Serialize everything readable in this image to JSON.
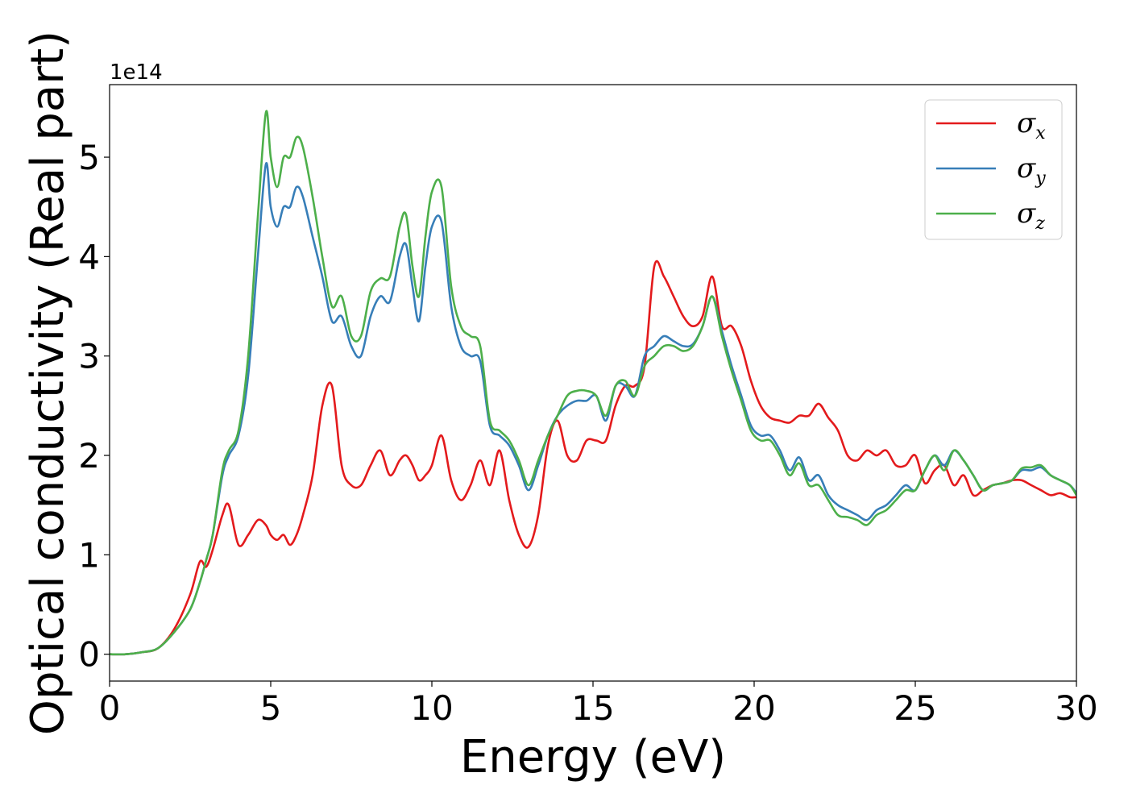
{
  "chart_data": {
    "type": "line",
    "xlabel": "Energy (eV)",
    "ylabel": "Optical conductivity (Real part)",
    "offset_text": "1e14",
    "xlim": [
      0,
      30
    ],
    "ylim": [
      -0.27,
      5.73
    ],
    "xticks": [
      0,
      5,
      10,
      15,
      20,
      25,
      30
    ],
    "xtick_labels": [
      "0",
      "5",
      "10",
      "15",
      "20",
      "25",
      "30"
    ],
    "yticks": [
      0,
      1,
      2,
      3,
      4,
      5
    ],
    "ytick_labels": [
      "0",
      "1",
      "2",
      "3",
      "4",
      "5"
    ],
    "grid": false,
    "legend": {
      "position": "top-right"
    },
    "x": [
      0,
      0.5,
      1,
      1.5,
      2,
      2.5,
      2.8,
      3,
      3.2,
      3.5,
      3.7,
      4,
      4.3,
      4.6,
      4.85,
      5,
      5.2,
      5.4,
      5.6,
      5.8,
      6,
      6.3,
      6.6,
      6.9,
      7.2,
      7.5,
      7.8,
      8.1,
      8.4,
      8.7,
      9,
      9.2,
      9.4,
      9.6,
      9.8,
      10,
      10.3,
      10.6,
      10.9,
      11.2,
      11.5,
      11.8,
      12.1,
      12.4,
      12.7,
      13,
      13.3,
      13.6,
      13.9,
      14.2,
      14.5,
      14.8,
      15.1,
      15.4,
      15.7,
      16,
      16.3,
      16.6,
      16.9,
      17.2,
      17.5,
      17.8,
      18.1,
      18.4,
      18.7,
      19,
      19.3,
      19.6,
      19.9,
      20.2,
      20.5,
      20.8,
      21.1,
      21.4,
      21.7,
      22,
      22.3,
      22.6,
      22.9,
      23.2,
      23.5,
      23.8,
      24.1,
      24.4,
      24.7,
      25,
      25.3,
      25.6,
      25.9,
      26.2,
      26.5,
      26.8,
      27.1,
      27.4,
      27.7,
      28,
      28.3,
      28.6,
      28.9,
      29.2,
      29.5,
      29.8,
      30
    ],
    "series": [
      {
        "name": "σ",
        "subscript": "x",
        "color": "#e31a1c",
        "values": [
          0,
          0,
          0.02,
          0.06,
          0.25,
          0.6,
          0.93,
          0.88,
          1.05,
          1.4,
          1.5,
          1.1,
          1.2,
          1.35,
          1.3,
          1.2,
          1.15,
          1.2,
          1.1,
          1.2,
          1.4,
          1.8,
          2.5,
          2.7,
          1.9,
          1.7,
          1.7,
          1.9,
          2.05,
          1.8,
          1.95,
          2.0,
          1.9,
          1.75,
          1.8,
          1.9,
          2.2,
          1.75,
          1.55,
          1.7,
          1.95,
          1.7,
          2.05,
          1.55,
          1.2,
          1.08,
          1.4,
          2.1,
          2.35,
          2.0,
          1.95,
          2.15,
          2.15,
          2.15,
          2.5,
          2.7,
          2.7,
          2.9,
          3.9,
          3.8,
          3.6,
          3.4,
          3.3,
          3.4,
          3.8,
          3.3,
          3.3,
          3.1,
          2.75,
          2.5,
          2.38,
          2.35,
          2.33,
          2.4,
          2.4,
          2.52,
          2.38,
          2.25,
          2.0,
          1.95,
          2.05,
          2.0,
          2.05,
          1.9,
          1.9,
          2.0,
          1.72,
          1.85,
          1.9,
          1.7,
          1.8,
          1.6,
          1.65,
          1.7,
          1.72,
          1.75,
          1.75,
          1.7,
          1.65,
          1.6,
          1.62,
          1.58,
          1.58
        ]
      },
      {
        "name": "σ",
        "subscript": "y",
        "color": "#377eb8",
        "values": [
          0,
          0,
          0.02,
          0.06,
          0.22,
          0.45,
          0.72,
          0.95,
          1.2,
          1.8,
          2.0,
          2.2,
          2.8,
          4.0,
          4.93,
          4.5,
          4.3,
          4.5,
          4.5,
          4.7,
          4.6,
          4.2,
          3.8,
          3.35,
          3.4,
          3.1,
          3.0,
          3.4,
          3.6,
          3.55,
          4.0,
          4.12,
          3.7,
          3.35,
          3.9,
          4.3,
          4.35,
          3.5,
          3.1,
          3.0,
          2.95,
          2.3,
          2.2,
          2.1,
          1.9,
          1.65,
          1.9,
          2.2,
          2.4,
          2.5,
          2.55,
          2.55,
          2.6,
          2.35,
          2.7,
          2.7,
          2.6,
          3.0,
          3.1,
          3.2,
          3.15,
          3.1,
          3.12,
          3.3,
          3.6,
          3.25,
          2.9,
          2.6,
          2.3,
          2.2,
          2.2,
          2.05,
          1.85,
          1.98,
          1.75,
          1.8,
          1.6,
          1.5,
          1.45,
          1.4,
          1.35,
          1.45,
          1.5,
          1.6,
          1.7,
          1.65,
          1.85,
          2.0,
          1.9,
          2.05,
          1.95,
          1.8,
          1.65,
          1.7,
          1.72,
          1.75,
          1.85,
          1.85,
          1.88,
          1.8,
          1.75,
          1.7,
          1.62
        ]
      },
      {
        "name": "σ",
        "subscript": "z",
        "color": "#4daf4a",
        "values": [
          0,
          0,
          0.02,
          0.06,
          0.22,
          0.45,
          0.72,
          0.95,
          1.2,
          1.85,
          2.05,
          2.25,
          3.0,
          4.4,
          5.45,
          5.0,
          4.7,
          5.0,
          5.0,
          5.2,
          5.1,
          4.6,
          4.0,
          3.5,
          3.6,
          3.2,
          3.2,
          3.65,
          3.78,
          3.8,
          4.3,
          4.42,
          3.9,
          3.6,
          4.2,
          4.65,
          4.7,
          3.7,
          3.3,
          3.2,
          3.1,
          2.35,
          2.25,
          2.15,
          1.95,
          1.7,
          1.95,
          2.2,
          2.4,
          2.6,
          2.65,
          2.65,
          2.6,
          2.4,
          2.7,
          2.75,
          2.6,
          2.9,
          3.0,
          3.1,
          3.1,
          3.05,
          3.1,
          3.3,
          3.6,
          3.2,
          2.85,
          2.55,
          2.25,
          2.15,
          2.15,
          2.0,
          1.8,
          1.92,
          1.7,
          1.7,
          1.55,
          1.4,
          1.38,
          1.35,
          1.3,
          1.4,
          1.45,
          1.55,
          1.65,
          1.65,
          1.85,
          2.0,
          1.85,
          2.05,
          1.95,
          1.8,
          1.65,
          1.7,
          1.72,
          1.75,
          1.87,
          1.88,
          1.9,
          1.8,
          1.75,
          1.7,
          1.6
        ]
      }
    ]
  }
}
